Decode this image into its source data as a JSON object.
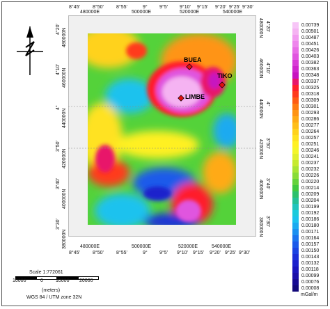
{
  "map": {
    "unit": "mGal/m",
    "top_utm_labels": [
      "480000E",
      "500000E",
      "520000E",
      "540000E"
    ],
    "top_deg_labels": [
      "8°45'",
      "8°50'",
      "8°55'",
      "9°",
      "9°5'",
      "9°10'",
      "9°15'",
      "9°20'",
      "9°25'",
      "9°30'"
    ],
    "bottom_utm_labels": [
      "480000E",
      "500000E",
      "520000E",
      "540000E"
    ],
    "bottom_deg_labels": [
      "8°45'",
      "8°50'",
      "8°55'",
      "9°",
      "9°5'",
      "9°10'",
      "9°15'",
      "9°20'",
      "9°25'",
      "9°30'"
    ],
    "left_deg_labels": [
      "4°20'",
      "4°10'",
      "4°",
      "3°50'",
      "3°40'",
      "3°30'"
    ],
    "left_utm_labels": [
      "480000N",
      "460000N",
      "440000N",
      "420000N",
      "400000N",
      "380000N"
    ],
    "right_deg_labels": [
      "4°20'",
      "4°10'",
      "4°",
      "3°50'",
      "3°40'",
      "3°30'"
    ],
    "right_utm_labels": [
      "480000N",
      "460000N",
      "440000N",
      "420000N",
      "400000N",
      "380000N"
    ],
    "places": [
      {
        "name": "BUEA"
      },
      {
        "name": "TIKO"
      },
      {
        "name": "LIMBE"
      }
    ],
    "scale_text": "Scale 1:772061",
    "scale_ticks": [
      "10000",
      "0",
      "10000",
      "20000"
    ],
    "scale_units": "(meters)",
    "projection": "WGS 84 / UTM zone 32N"
  },
  "legend": {
    "values": [
      "0.00739",
      "0.00501",
      "0.00487",
      "0.00451",
      "0.00426",
      "0.00403",
      "0.00382",
      "0.00363",
      "0.00348",
      "0.00337",
      "0.00325",
      "0.00318",
      "0.00309",
      "0.00301",
      "0.00293",
      "0.00286",
      "0.00277",
      "0.00264",
      "0.00257",
      "0.00251",
      "0.00246",
      "0.00241",
      "0.00237",
      "0.00232",
      "0.00226",
      "0.00220",
      "0.00214",
      "0.00209",
      "0.00204",
      "0.00199",
      "0.00192",
      "0.00186",
      "0.00180",
      "0.00171",
      "0.00164",
      "0.00157",
      "0.00150",
      "0.00143",
      "0.00132",
      "0.00118",
      "0.00099",
      "0.00076",
      "0.00008"
    ],
    "colors": [
      "#f7c6f7",
      "#f5b3f2",
      "#f29bf0",
      "#ee85ec",
      "#e86de6",
      "#e055df",
      "#d83cd6",
      "#cf26cc",
      "#c712c0",
      "#e8146a",
      "#ff1f2a",
      "#ff3a1c",
      "#ff5a12",
      "#ff7a10",
      "#ff9412",
      "#ffaa14",
      "#ffbe18",
      "#ffd21c",
      "#ffe220",
      "#fff024",
      "#f4f628",
      "#e0f02c",
      "#c6ea30",
      "#a8e434",
      "#88dc38",
      "#64d23c",
      "#40c840",
      "#2cc06c",
      "#24c096",
      "#20c4bc",
      "#1ccadc",
      "#1cc2ee",
      "#1caaf0",
      "#1c90f0",
      "#1c74ee",
      "#1c5aea",
      "#1c44e2",
      "#1c30d8",
      "#1c20cc",
      "#1a14bc",
      "#1a0ea8",
      "#160a92",
      "#12087a"
    ]
  }
}
